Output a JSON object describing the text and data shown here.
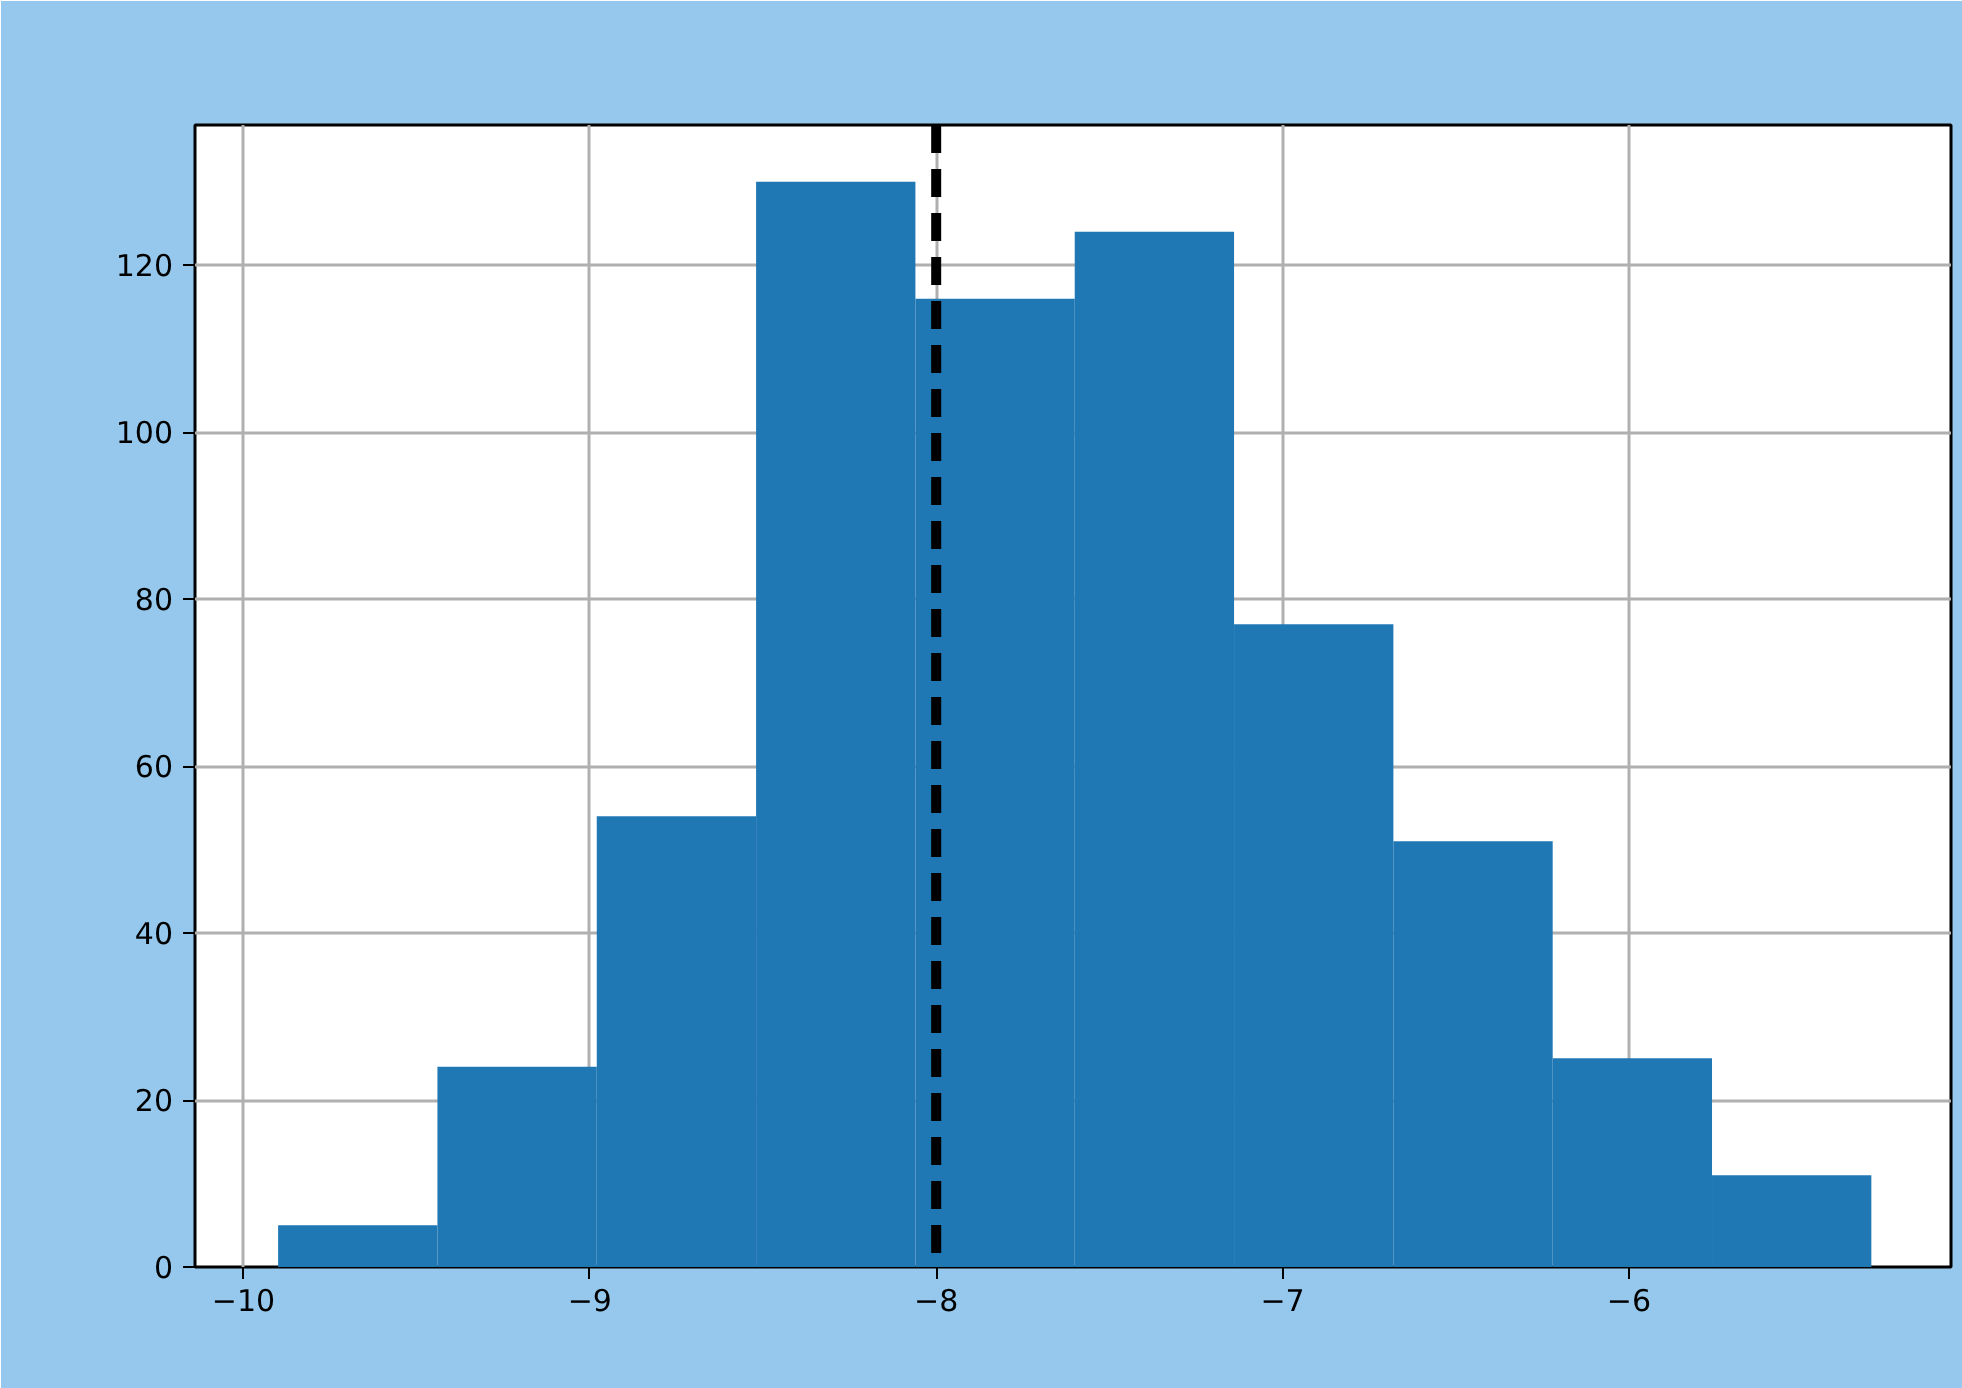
{
  "chart_data": {
    "type": "histogram",
    "bins": [
      -9.9,
      -9.44,
      -8.98,
      -8.52,
      -8.06,
      -7.6,
      -7.14,
      -6.68,
      -6.22,
      -5.76,
      -5.3
    ],
    "values": [
      5,
      24,
      54,
      130,
      116,
      124,
      77,
      51,
      25,
      11
    ],
    "color": "#1f77b4",
    "xlim": [
      -10.14,
      -5.07
    ],
    "ylim": [
      0,
      136.8
    ],
    "xticks": [
      {
        "value": -10,
        "label": "−10"
      },
      {
        "value": -9,
        "label": "−9"
      },
      {
        "value": -8,
        "label": "−8"
      },
      {
        "value": -7,
        "label": "−7"
      },
      {
        "value": -6,
        "label": "−6"
      }
    ],
    "yticks": [
      0,
      20,
      40,
      60,
      80,
      100,
      120
    ],
    "grid": true,
    "ref_lines": [
      {
        "axis": "x",
        "value": -8,
        "color": "#000000",
        "line_style": "dashed"
      }
    ]
  }
}
